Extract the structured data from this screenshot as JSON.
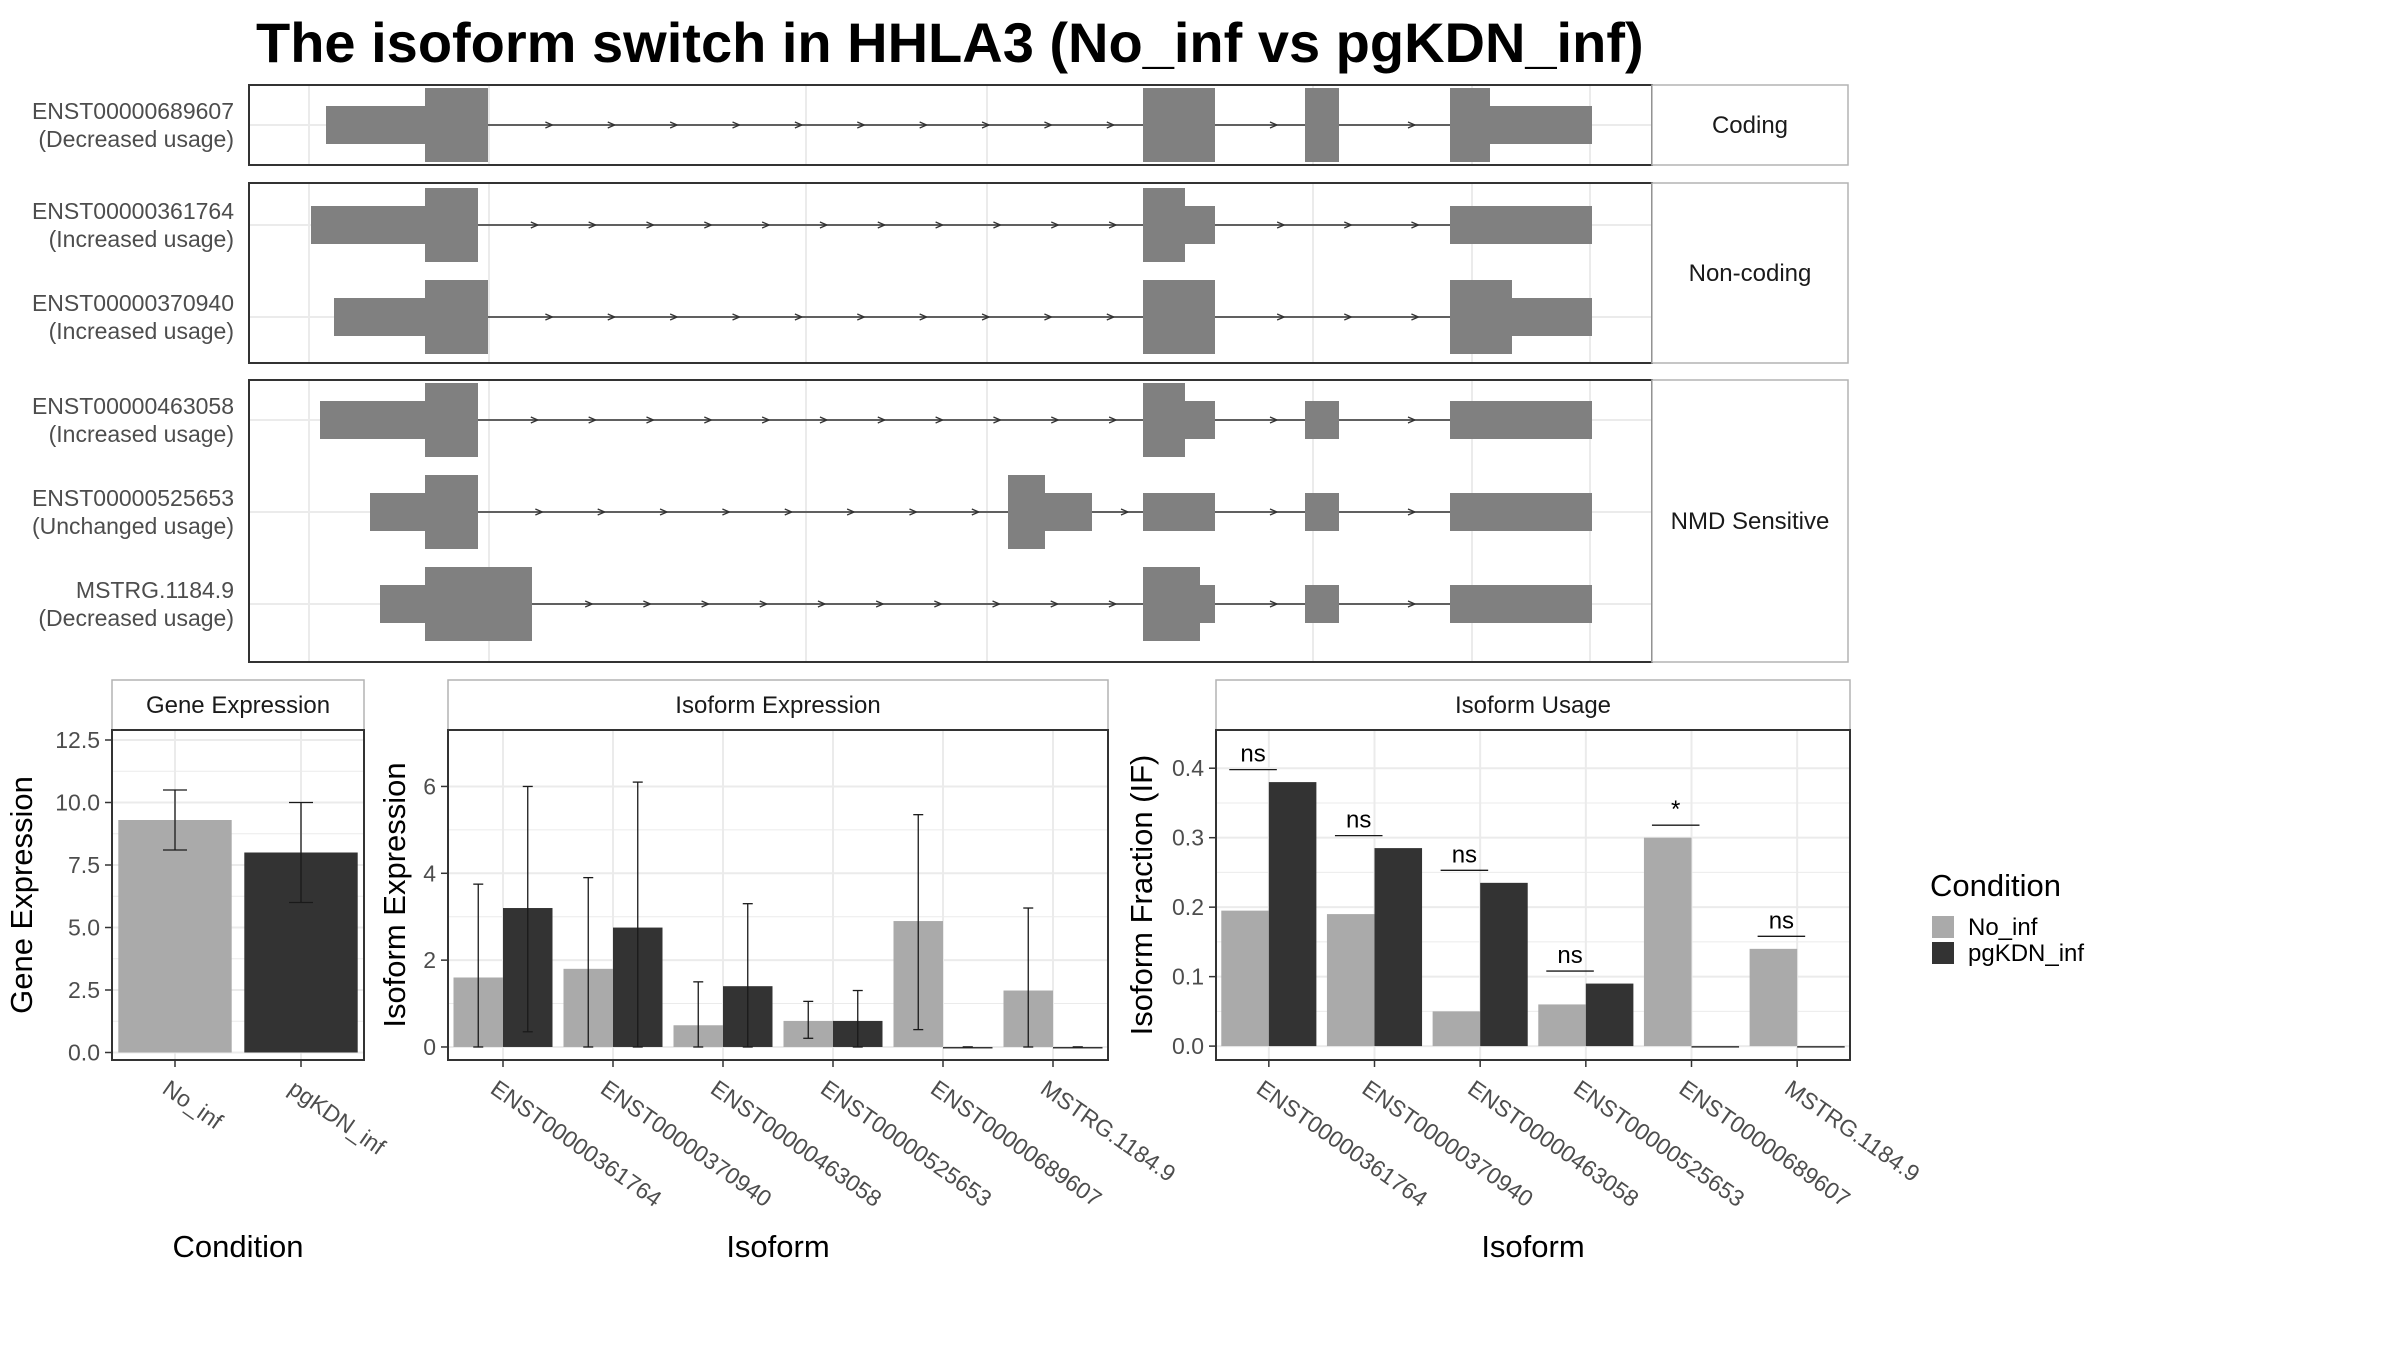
{
  "title": "The isoform switch in HHLA3 (No_inf vs pgKDN_inf)",
  "colors": {
    "No_inf": "#aaaaaa",
    "pgKDN_inf": "#333333",
    "exon": "#808080",
    "grid": "#ebebeb",
    "panel_border": "#333333",
    "strip_border": "#b3b3b3"
  },
  "chart_data": [
    {
      "type": "gene-structure",
      "panel": "transcript-structure",
      "groups": [
        {
          "strip": "Coding",
          "transcripts": [
            {
              "id": "ENST00000689607",
              "usage": "(Decreased usage)"
            }
          ]
        },
        {
          "strip": "Non-coding",
          "transcripts": [
            {
              "id": "ENST00000361764",
              "usage": "(Increased usage)"
            },
            {
              "id": "ENST00000370940",
              "usage": "(Increased usage)"
            }
          ]
        },
        {
          "strip": "NMD Sensitive",
          "transcripts": [
            {
              "id": "ENST00000463058",
              "usage": "(Increased usage)"
            },
            {
              "id": "ENST00000525653",
              "usage": "(Unchanged usage)"
            },
            {
              "id": "MSTRG.1184.9",
              "usage": "(Decreased usage)"
            }
          ]
        }
      ]
    },
    {
      "type": "bar",
      "panel": "gene-expression",
      "strip": "Gene Expression",
      "xlabel": "Condition",
      "ylabel": "Gene Expression",
      "categories": [
        "No_inf",
        "pgKDN_inf"
      ],
      "values": [
        9.3,
        8.0
      ],
      "error_low": [
        8.1,
        6.0
      ],
      "error_high": [
        10.5,
        10.0
      ],
      "ylim": [
        -0.3,
        12.9
      ],
      "yticks": [
        0.0,
        2.5,
        5.0,
        7.5,
        10.0,
        12.5
      ],
      "ytick_labels": [
        "0.0",
        "2.5",
        "5.0",
        "7.5",
        "10.0",
        "12.5"
      ]
    },
    {
      "type": "bar",
      "panel": "isoform-expression",
      "strip": "Isoform Expression",
      "xlabel": "Isoform",
      "ylabel": "Isoform Expression",
      "categories": [
        "ENST00000361764",
        "ENST00000370940",
        "ENST00000463058",
        "ENST00000525653",
        "ENST00000689607",
        "MSTRG.1184.9"
      ],
      "series": [
        {
          "name": "No_inf",
          "values": [
            1.6,
            1.8,
            0.5,
            0.6,
            2.9,
            1.3
          ],
          "error_low": [
            0.0,
            0.0,
            0.0,
            0.2,
            0.4,
            0.0
          ],
          "error_high": [
            3.75,
            3.9,
            1.5,
            1.05,
            5.35,
            3.2
          ]
        },
        {
          "name": "pgKDN_inf",
          "values": [
            3.2,
            2.75,
            1.4,
            0.6,
            0.0,
            0.0
          ],
          "error_low": [
            0.35,
            0.0,
            0.0,
            0.0,
            0.0,
            0.0
          ],
          "error_high": [
            6.0,
            6.1,
            3.3,
            1.3,
            0.0,
            0.0
          ]
        }
      ],
      "ylim": [
        -0.3,
        7.3
      ],
      "yticks": [
        0,
        2,
        4,
        6
      ],
      "ytick_labels": [
        "0",
        "2",
        "4",
        "6"
      ]
    },
    {
      "type": "bar",
      "panel": "isoform-usage",
      "strip": "Isoform Usage",
      "xlabel": "Isoform",
      "ylabel": "Isoform Fraction (IF)",
      "categories": [
        "ENST00000361764",
        "ENST00000370940",
        "ENST00000463058",
        "ENST00000525653",
        "ENST00000689607",
        "MSTRG.1184.9"
      ],
      "series": [
        {
          "name": "No_inf",
          "values": [
            0.195,
            0.19,
            0.05,
            0.06,
            0.3,
            0.14
          ]
        },
        {
          "name": "pgKDN_inf",
          "values": [
            0.38,
            0.285,
            0.235,
            0.09,
            0.0,
            0.0
          ]
        }
      ],
      "significance": [
        "ns",
        "ns",
        "ns",
        "ns",
        "*",
        "ns"
      ],
      "ylim": [
        -0.02,
        0.455
      ],
      "yticks": [
        0.0,
        0.1,
        0.2,
        0.3,
        0.4
      ],
      "ytick_labels": [
        "0.0",
        "0.1",
        "0.2",
        "0.3",
        "0.4"
      ]
    }
  ],
  "legend": {
    "title": "Condition",
    "entries": [
      "No_inf",
      "pgKDN_inf"
    ]
  }
}
